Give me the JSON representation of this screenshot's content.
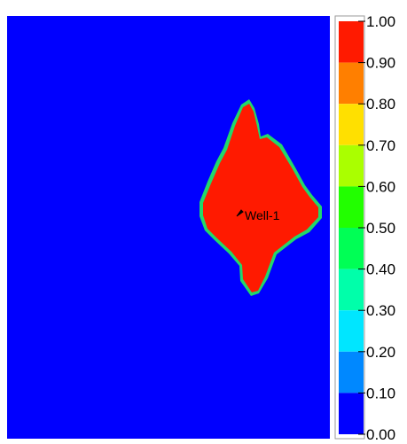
{
  "chart_data": {
    "type": "heatmap",
    "title": "",
    "xlabel": "",
    "ylabel": "",
    "colorbar": {
      "min": 0.0,
      "max": 1.0,
      "tick_labels": [
        "1.00",
        "0.90",
        "0.80",
        "0.70",
        "0.60",
        "0.50",
        "0.40",
        "0.30",
        "0.20",
        "0.10",
        "0.00"
      ],
      "bins": [
        {
          "from": 0.9,
          "to": 1.0,
          "color": "#ff1a00"
        },
        {
          "from": 0.8,
          "to": 0.9,
          "color": "#ff7f00"
        },
        {
          "from": 0.7,
          "to": 0.8,
          "color": "#ffe000"
        },
        {
          "from": 0.6,
          "to": 0.7,
          "color": "#aaff00"
        },
        {
          "from": 0.5,
          "to": 0.6,
          "color": "#22ff00"
        },
        {
          "from": 0.4,
          "to": 0.5,
          "color": "#00ff55"
        },
        {
          "from": 0.3,
          "to": 0.4,
          "color": "#00ffaa"
        },
        {
          "from": 0.2,
          "to": 0.3,
          "color": "#00e6ff"
        },
        {
          "from": 0.1,
          "to": 0.2,
          "color": "#0088ff"
        },
        {
          "from": 0.0,
          "to": 0.1,
          "color": "#0000ff"
        }
      ]
    },
    "background_value": 0.0,
    "background_color": "#0000ff",
    "plume": {
      "value": 1.0,
      "color": "#ff1a00",
      "edge_color": "#22d86a"
    },
    "annotations": [
      {
        "text": "Well-1",
        "marker": "well-symbol"
      }
    ],
    "grid": false,
    "legend_position": "right"
  }
}
